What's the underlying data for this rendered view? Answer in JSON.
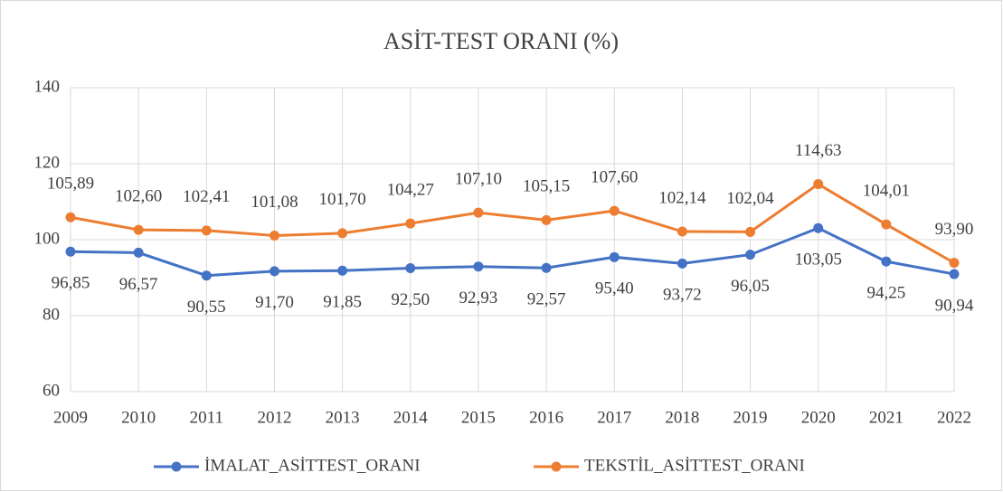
{
  "chart_data": {
    "type": "line",
    "title": "ASİT-TEST ORANI (%)",
    "categories": [
      "2009",
      "2010",
      "2011",
      "2012",
      "2013",
      "2014",
      "2015",
      "2016",
      "2017",
      "2018",
      "2019",
      "2020",
      "2021",
      "2022"
    ],
    "series": [
      {
        "name": "İMALAT_ASİTTEST_ORANI",
        "color": "#4472c4",
        "values": [
          96.85,
          96.57,
          90.55,
          91.7,
          91.85,
          92.5,
          92.93,
          92.57,
          95.4,
          93.72,
          96.05,
          103.05,
          94.25,
          90.94
        ],
        "value_labels": [
          "96,85",
          "96,57",
          "90,55",
          "91,70",
          "91,85",
          "92,50",
          "92,93",
          "92,57",
          "95,40",
          "93,72",
          "96,05",
          "103,05",
          "94,25",
          "90,94"
        ]
      },
      {
        "name": "TEKSTİL_ASİTTEST_ORANI",
        "color": "#ed7d31",
        "values": [
          105.89,
          102.6,
          102.41,
          101.08,
          101.7,
          104.27,
          107.1,
          105.15,
          107.6,
          102.14,
          102.04,
          114.63,
          104.01,
          93.9
        ],
        "value_labels": [
          "105,89",
          "102,60",
          "102,41",
          "101,08",
          "101,70",
          "104,27",
          "107,10",
          "105,15",
          "107,60",
          "102,14",
          "102,04",
          "114,63",
          "104,01",
          "93,90"
        ]
      }
    ],
    "ylim": [
      60,
      140
    ],
    "yticks": [
      60,
      80,
      100,
      120,
      140
    ],
    "grid": true,
    "legend": "bottom"
  }
}
